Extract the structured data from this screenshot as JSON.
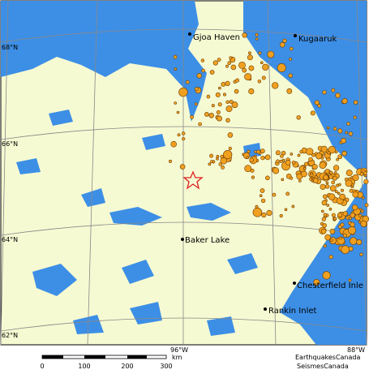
{
  "map": {
    "lat_labels": [
      "68°N",
      "66°N",
      "64°N",
      "62°N"
    ],
    "lon_labels": [
      "96°W",
      "88°W"
    ],
    "places": [
      "Gjoa Haven",
      "Kugaaruk",
      "Baker Lake",
      "Chesterfield Inle",
      "Rankin Inlet"
    ],
    "scale": {
      "ticks": [
        "0",
        "100",
        "200",
        "300"
      ],
      "unit": "km"
    },
    "credits": [
      "EarthquakesCanada",
      "SeismesCanada"
    ]
  }
}
